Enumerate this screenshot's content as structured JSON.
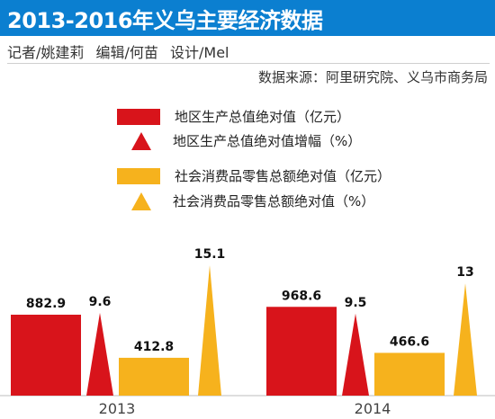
{
  "header": {
    "title": "2013-2016年义乌主要经济数据",
    "credits": [
      "记者/姚建莉",
      "编辑/何苗",
      "设计/Mel"
    ],
    "source": "数据来源：阿里研究院、义乌市商务局"
  },
  "colors": {
    "title_bg": "#0b7fd0",
    "red": "#d8141b",
    "yellow": "#f6b21d"
  },
  "chart_data": {
    "type": "bar",
    "categories": [
      "2013",
      "2014"
    ],
    "series": [
      {
        "name": "地区生产总值绝对值（亿元）",
        "mark": "rect",
        "color": "#d8141b",
        "values": [
          882.9,
          968.6
        ],
        "labels": [
          "882.9",
          "968.6"
        ]
      },
      {
        "name": "地区生产总值绝对值增幅（%）",
        "mark": "triangle",
        "color": "#d8141b",
        "values": [
          9.6,
          9.5
        ],
        "labels": [
          "9.6",
          "9.5"
        ]
      },
      {
        "name": "社会消费品零售总额绝对值（亿元）",
        "mark": "rect",
        "color": "#f6b21d",
        "values": [
          412.8,
          466.6
        ],
        "labels": [
          "412.8",
          "466.6"
        ]
      },
      {
        "name": "社会消费品零售总额绝对值（%）",
        "mark": "triangle",
        "color": "#f6b21d",
        "values": [
          15.1,
          13
        ],
        "labels": [
          "15.1",
          "13"
        ]
      }
    ],
    "legend_position": "top-left",
    "grid": false
  }
}
